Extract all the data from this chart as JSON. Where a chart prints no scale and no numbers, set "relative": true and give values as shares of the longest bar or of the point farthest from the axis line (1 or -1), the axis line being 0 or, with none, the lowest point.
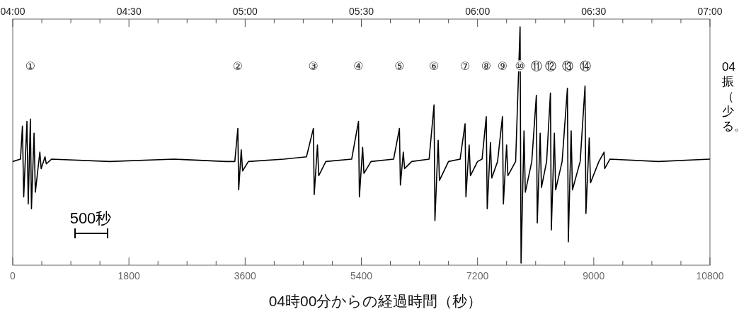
{
  "chart_data": {
    "type": "line",
    "relative": true,
    "color": "#000000",
    "line_style": "solid",
    "tick_labels": "x",
    "xlabel": "04時00分からの経過時間（秒）",
    "xlim": [
      0,
      10800
    ],
    "xticks": [
      0,
      {
        "value": 450,
        "label": null
      },
      {
        "value": 900,
        "label": null
      },
      {
        "value": 1350,
        "label": null
      },
      1800,
      {
        "value": 2250,
        "label": null
      },
      {
        "value": 2700,
        "label": null
      },
      {
        "value": 3150,
        "label": null
      },
      3600,
      {
        "value": 4050,
        "label": null
      },
      {
        "value": 4500,
        "label": null
      },
      {
        "value": 4950,
        "label": null
      },
      5400,
      {
        "value": 5850,
        "label": null
      },
      {
        "value": 6300,
        "label": null
      },
      {
        "value": 6750,
        "label": null
      },
      7200,
      {
        "value": 7650,
        "label": null
      },
      {
        "value": 8100,
        "label": null
      },
      {
        "value": 8550,
        "label": null
      },
      9000,
      {
        "value": 9450,
        "label": null
      },
      {
        "value": 9900,
        "label": null
      },
      {
        "value": 10350,
        "label": null
      },
      10800
    ],
    "x2lim": [
      4,
      7
    ],
    "x2ticks": [
      {
        "value": 4,
        "label": "04:00"
      },
      {
        "value": 4.125,
        "label": null
      },
      {
        "value": 4.25,
        "label": null
      },
      {
        "value": 4.375,
        "label": null
      },
      {
        "value": 4.5,
        "label": "04:30"
      },
      {
        "value": 4.625,
        "label": null
      },
      {
        "value": 4.75,
        "label": null
      },
      {
        "value": 4.875,
        "label": null
      },
      {
        "value": 5,
        "label": "05:00"
      },
      {
        "value": 5.125,
        "label": null
      },
      {
        "value": 5.25,
        "label": null
      },
      {
        "value": 5.375,
        "label": null
      },
      {
        "value": 5.5,
        "label": "05:30"
      },
      {
        "value": 5.625,
        "label": null
      },
      {
        "value": 5.75,
        "label": null
      },
      {
        "value": 5.875,
        "label": null
      },
      {
        "value": 6,
        "label": "06:00"
      },
      {
        "value": 6.125,
        "label": null
      },
      {
        "value": 6.25,
        "label": null
      },
      {
        "value": 6.375,
        "label": null
      },
      {
        "value": 6.5,
        "label": "06:30"
      },
      {
        "value": 6.625,
        "label": null
      },
      {
        "value": 6.75,
        "label": null
      },
      {
        "value": 6.875,
        "label": null
      },
      {
        "value": 7,
        "label": "07:00"
      }
    ],
    "x": [
      0,
      120,
      150,
      170,
      220,
      240,
      273,
      290,
      330,
      350,
      420,
      440,
      500,
      520,
      600,
      1500,
      2500,
      3300,
      3440,
      3487,
      3500,
      3540,
      3560,
      3650,
      4200,
      4550,
      4657,
      4670,
      4720,
      4740,
      4850,
      5250,
      5356,
      5370,
      5420,
      5440,
      5550,
      5900,
      5990,
      6005,
      6050,
      6070,
      6180,
      6450,
      6526,
      6540,
      6590,
      6610,
      6750,
      6930,
      7007,
      7020,
      7070,
      7090,
      7200,
      7270,
      7335,
      7350,
      7400,
      7420,
      7510,
      7586,
      7600,
      7650,
      7670,
      7790,
      7859,
      7874,
      7920,
      7940,
      8040,
      8111,
      8125,
      8170,
      8190,
      8270,
      8329,
      8343,
      8390,
      8410,
      8510,
      8592,
      8606,
      8650,
      8670,
      8790,
      8865,
      8879,
      8930,
      8950,
      9080,
      9160,
      9170,
      9250,
      10000,
      10800
    ],
    "values": [
      0.43,
      0.44,
      0.58,
      0.28,
      0.6,
      0.25,
      0.61,
      0.23,
      0.55,
      0.3,
      0.47,
      0.4,
      0.45,
      0.42,
      0.44,
      0.43,
      0.44,
      0.43,
      0.43,
      0.57,
      0.31,
      0.48,
      0.39,
      0.43,
      0.44,
      0.45,
      0.57,
      0.29,
      0.5,
      0.37,
      0.43,
      0.44,
      0.6,
      0.28,
      0.49,
      0.38,
      0.43,
      0.44,
      0.57,
      0.33,
      0.47,
      0.4,
      0.43,
      0.44,
      0.67,
      0.18,
      0.52,
      0.35,
      0.43,
      0.44,
      0.59,
      0.28,
      0.5,
      0.37,
      0.43,
      0.44,
      0.62,
      0.23,
      0.51,
      0.36,
      0.43,
      0.62,
      0.25,
      0.5,
      0.37,
      0.43,
      1,
      0,
      0.56,
      0.3,
      0.43,
      0.71,
      0.17,
      0.55,
      0.32,
      0.43,
      0.72,
      0.14,
      0.55,
      0.31,
      0.43,
      0.74,
      0.09,
      0.56,
      0.31,
      0.43,
      0.75,
      0.21,
      0.53,
      0.34,
      0.43,
      0.47,
      0.4,
      0.44,
      0.43,
      0.44
    ],
    "annotations": [
      "①",
      "②",
      "③",
      "④",
      "⑤",
      "⑥",
      "⑦",
      "⑧",
      "⑨",
      "⑩",
      "⑪",
      "⑫",
      "⑬",
      "⑭",
      "500秒",
      "04",
      "振",
      "（",
      "少",
      "る。"
    ]
  }
}
